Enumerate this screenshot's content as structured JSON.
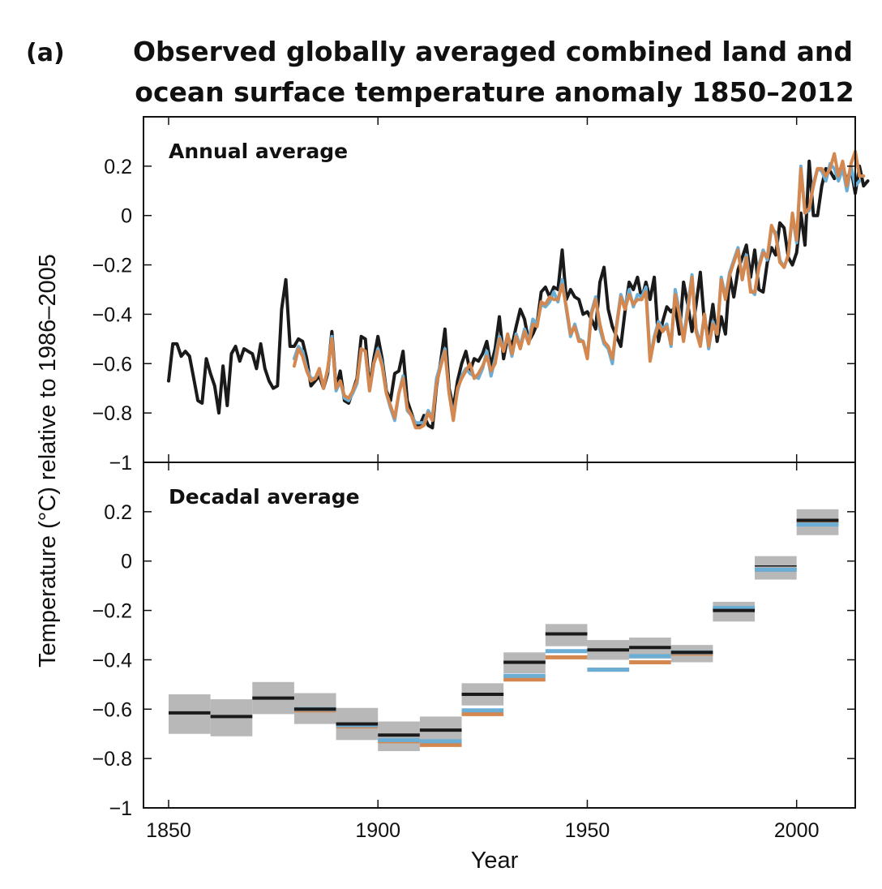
{
  "colors": {
    "black_series": "#1a1a1a",
    "blue_series": "#6aaed6",
    "orange_series": "#d4874f",
    "uncertainty": "#b8b8b8",
    "axis": "#111111"
  },
  "chart_data": {
    "type": "line",
    "panel_tag": "(a)",
    "title_lines": [
      "Observed globally averaged combined land and",
      "ocean surface temperature anomaly 1850–2012"
    ],
    "xlabel": "Year",
    "ylabel": "Temperature (°C) relative to 1986–2005",
    "xlim": [
      1844,
      2014
    ],
    "x_ticks": [
      1850,
      1900,
      1950,
      2000
    ],
    "x_tick_labels": [
      "1850",
      "1900",
      "1950",
      "2000"
    ],
    "grid": false,
    "legend": "none",
    "panels": [
      {
        "label": "Annual average",
        "type": "line",
        "ylim": [
          -1,
          0.4
        ],
        "y_ticks": [
          -1,
          -0.8,
          -0.6,
          -0.4,
          -0.2,
          0,
          0.2
        ],
        "y_tick_labels": [
          "−1",
          "−0.8",
          "−0.6",
          "−0.4",
          "−0.2",
          "0",
          "0.2"
        ],
        "series": [
          {
            "color_key": "black_series",
            "x_start": 1850,
            "values": [
              -0.67,
              -0.52,
              -0.52,
              -0.57,
              -0.55,
              -0.57,
              -0.66,
              -0.75,
              -0.76,
              -0.58,
              -0.64,
              -0.69,
              -0.8,
              -0.61,
              -0.77,
              -0.56,
              -0.53,
              -0.59,
              -0.54,
              -0.55,
              -0.56,
              -0.62,
              -0.52,
              -0.62,
              -0.67,
              -0.7,
              -0.69,
              -0.38,
              -0.26,
              -0.53,
              -0.53,
              -0.5,
              -0.51,
              -0.58,
              -0.69,
              -0.67,
              -0.65,
              -0.7,
              -0.64,
              -0.47,
              -0.7,
              -0.63,
              -0.75,
              -0.76,
              -0.71,
              -0.66,
              -0.49,
              -0.5,
              -0.7,
              -0.58,
              -0.49,
              -0.58,
              -0.71,
              -0.75,
              -0.64,
              -0.63,
              -0.55,
              -0.75,
              -0.8,
              -0.85,
              -0.85,
              -0.81,
              -0.85,
              -0.86,
              -0.69,
              -0.59,
              -0.46,
              -0.7,
              -0.78,
              -0.67,
              -0.6,
              -0.55,
              -0.63,
              -0.58,
              -0.59,
              -0.56,
              -0.51,
              -0.61,
              -0.54,
              -0.41,
              -0.58,
              -0.49,
              -0.53,
              -0.45,
              -0.38,
              -0.42,
              -0.51,
              -0.48,
              -0.44,
              -0.31,
              -0.29,
              -0.33,
              -0.29,
              -0.3,
              -0.14,
              -0.34,
              -0.3,
              -0.33,
              -0.34,
              -0.4,
              -0.39,
              -0.42,
              -0.46,
              -0.27,
              -0.21,
              -0.38,
              -0.45,
              -0.49,
              -0.53,
              -0.39,
              -0.27,
              -0.3,
              -0.25,
              -0.34,
              -0.27,
              -0.34,
              -0.25,
              -0.51,
              -0.43,
              -0.37,
              -0.39,
              -0.37,
              -0.48,
              -0.27,
              -0.36,
              -0.47,
              -0.36,
              -0.23,
              -0.44,
              -0.48,
              -0.36,
              -0.51,
              -0.41,
              -0.48,
              -0.24,
              -0.33,
              -0.22,
              -0.17,
              -0.12,
              -0.25,
              -0.14,
              -0.3,
              -0.31,
              -0.19,
              -0.13,
              -0.16,
              -0.03,
              -0.05,
              -0.17,
              -0.2,
              -0.15,
              0.01,
              -0.12,
              0.22,
              0.0,
              0.0,
              0.12,
              0.19,
              0.18,
              0.15,
              0.18,
              0.2,
              0.14,
              0.19,
              0.09,
              0.2,
              0.12,
              0.14
            ]
          },
          {
            "color_key": "blue_series",
            "x_start": 1880,
            "values": [
              -0.58,
              -0.53,
              -0.55,
              -0.62,
              -0.66,
              -0.66,
              -0.63,
              -0.69,
              -0.63,
              -0.49,
              -0.71,
              -0.67,
              -0.74,
              -0.75,
              -0.72,
              -0.68,
              -0.54,
              -0.55,
              -0.71,
              -0.6,
              -0.54,
              -0.6,
              -0.72,
              -0.78,
              -0.83,
              -0.72,
              -0.65,
              -0.79,
              -0.81,
              -0.84,
              -0.84,
              -0.84,
              -0.79,
              -0.82,
              -0.66,
              -0.6,
              -0.54,
              -0.72,
              -0.81,
              -0.71,
              -0.65,
              -0.62,
              -0.64,
              -0.65,
              -0.66,
              -0.62,
              -0.55,
              -0.65,
              -0.58,
              -0.49,
              -0.54,
              -0.49,
              -0.57,
              -0.48,
              -0.53,
              -0.46,
              -0.51,
              -0.42,
              -0.44,
              -0.36,
              -0.37,
              -0.35,
              -0.31,
              -0.35,
              -0.26,
              -0.38,
              -0.49,
              -0.44,
              -0.5,
              -0.51,
              -0.57,
              -0.39,
              -0.33,
              -0.46,
              -0.52,
              -0.54,
              -0.6,
              -0.44,
              -0.32,
              -0.37,
              -0.3,
              -0.37,
              -0.32,
              -0.33,
              -0.29,
              -0.58,
              -0.49,
              -0.43,
              -0.46,
              -0.44,
              -0.53,
              -0.3,
              -0.39,
              -0.5,
              -0.37,
              -0.24,
              -0.46,
              -0.52,
              -0.4,
              -0.54,
              -0.43,
              -0.48,
              -0.25,
              -0.33,
              -0.23,
              -0.18,
              -0.13,
              -0.26,
              -0.16,
              -0.3,
              -0.32,
              -0.2,
              -0.14,
              -0.18,
              -0.05,
              -0.07,
              -0.18,
              -0.21,
              -0.16,
              0.0,
              -0.11,
              0.2,
              0.01,
              0.02,
              0.13,
              0.19,
              0.18,
              0.14,
              0.21,
              0.19,
              0.14,
              0.19,
              0.1,
              0.2,
              0.12,
              0.14
            ]
          },
          {
            "color_key": "orange_series",
            "x_start": 1880,
            "values": [
              -0.61,
              -0.54,
              -0.57,
              -0.63,
              -0.67,
              -0.66,
              -0.62,
              -0.7,
              -0.62,
              -0.5,
              -0.7,
              -0.67,
              -0.73,
              -0.74,
              -0.71,
              -0.67,
              -0.54,
              -0.55,
              -0.71,
              -0.6,
              -0.55,
              -0.61,
              -0.72,
              -0.77,
              -0.82,
              -0.72,
              -0.66,
              -0.78,
              -0.81,
              -0.86,
              -0.86,
              -0.85,
              -0.8,
              -0.83,
              -0.68,
              -0.61,
              -0.55,
              -0.72,
              -0.83,
              -0.7,
              -0.66,
              -0.63,
              -0.6,
              -0.66,
              -0.64,
              -0.61,
              -0.57,
              -0.63,
              -0.6,
              -0.5,
              -0.55,
              -0.48,
              -0.56,
              -0.49,
              -0.54,
              -0.47,
              -0.52,
              -0.44,
              -0.45,
              -0.35,
              -0.36,
              -0.33,
              -0.34,
              -0.34,
              -0.28,
              -0.37,
              -0.48,
              -0.45,
              -0.51,
              -0.51,
              -0.58,
              -0.4,
              -0.34,
              -0.44,
              -0.51,
              -0.53,
              -0.58,
              -0.45,
              -0.33,
              -0.38,
              -0.32,
              -0.36,
              -0.34,
              -0.34,
              -0.31,
              -0.59,
              -0.5,
              -0.44,
              -0.47,
              -0.45,
              -0.52,
              -0.32,
              -0.4,
              -0.51,
              -0.39,
              -0.25,
              -0.47,
              -0.53,
              -0.4,
              -0.53,
              -0.44,
              -0.48,
              -0.26,
              -0.34,
              -0.24,
              -0.19,
              -0.14,
              -0.26,
              -0.17,
              -0.31,
              -0.31,
              -0.21,
              -0.15,
              -0.17,
              -0.04,
              -0.08,
              -0.19,
              -0.21,
              -0.16,
              0.01,
              -0.1,
              0.19,
              0.01,
              0.03,
              0.12,
              0.19,
              0.19,
              0.16,
              0.19,
              0.25,
              0.16,
              0.22,
              0.12,
              0.21,
              0.26,
              0.16,
              0.16
            ]
          }
        ]
      },
      {
        "label": "Decadal average",
        "type": "bar",
        "ylim": [
          -1,
          0.4
        ],
        "y_ticks": [
          -1,
          -0.8,
          -0.6,
          -0.4,
          -0.2,
          0,
          0.2
        ],
        "y_tick_labels": [
          "−1",
          "−0.8",
          "−0.6",
          "−0.4",
          "−0.2",
          "0",
          "0.2"
        ],
        "decades": [
          {
            "start": 1850,
            "end": 1860,
            "black": -0.615,
            "low": -0.7,
            "high": -0.54
          },
          {
            "start": 1860,
            "end": 1870,
            "black": -0.63,
            "low": -0.71,
            "high": -0.56
          },
          {
            "start": 1870,
            "end": 1880,
            "black": -0.555,
            "low": -0.62,
            "high": -0.49
          },
          {
            "start": 1880,
            "end": 1890,
            "black": -0.6,
            "blue": -0.6,
            "orange": -0.605,
            "low": -0.66,
            "high": -0.535
          },
          {
            "start": 1890,
            "end": 1900,
            "black": -0.66,
            "blue": -0.665,
            "orange": -0.67,
            "low": -0.725,
            "high": -0.595
          },
          {
            "start": 1900,
            "end": 1910,
            "black": -0.705,
            "blue": -0.725,
            "orange": -0.73,
            "low": -0.77,
            "high": -0.65
          },
          {
            "start": 1910,
            "end": 1920,
            "black": -0.685,
            "blue": -0.73,
            "orange": -0.745,
            "low": -0.74,
            "high": -0.63
          },
          {
            "start": 1920,
            "end": 1930,
            "black": -0.54,
            "blue": -0.605,
            "orange": -0.62,
            "low": -0.585,
            "high": -0.495
          },
          {
            "start": 1930,
            "end": 1940,
            "black": -0.41,
            "blue": -0.465,
            "orange": -0.48,
            "low": -0.455,
            "high": -0.37
          },
          {
            "start": 1940,
            "end": 1950,
            "black": -0.295,
            "blue": -0.365,
            "orange": -0.39,
            "low": -0.345,
            "high": -0.255
          },
          {
            "start": 1950,
            "end": 1960,
            "black": -0.36,
            "blue": -0.44,
            "orange": -0.44,
            "low": -0.4,
            "high": -0.32
          },
          {
            "start": 1960,
            "end": 1970,
            "black": -0.35,
            "blue": -0.385,
            "orange": -0.41,
            "low": -0.395,
            "high": -0.31
          },
          {
            "start": 1970,
            "end": 1980,
            "black": -0.37,
            "blue": -0.37,
            "orange": -0.375,
            "low": -0.41,
            "high": -0.34
          },
          {
            "start": 1980,
            "end": 1990,
            "black": -0.2,
            "blue": -0.19,
            "orange": -0.19,
            "low": -0.245,
            "high": -0.165
          },
          {
            "start": 1990,
            "end": 2000,
            "black": -0.02,
            "blue": -0.035,
            "orange": -0.035,
            "low": -0.075,
            "high": 0.02
          },
          {
            "start": 2000,
            "end": 2010,
            "black": 0.165,
            "blue": 0.148,
            "orange": 0.162,
            "low": 0.105,
            "high": 0.21
          }
        ]
      }
    ]
  }
}
